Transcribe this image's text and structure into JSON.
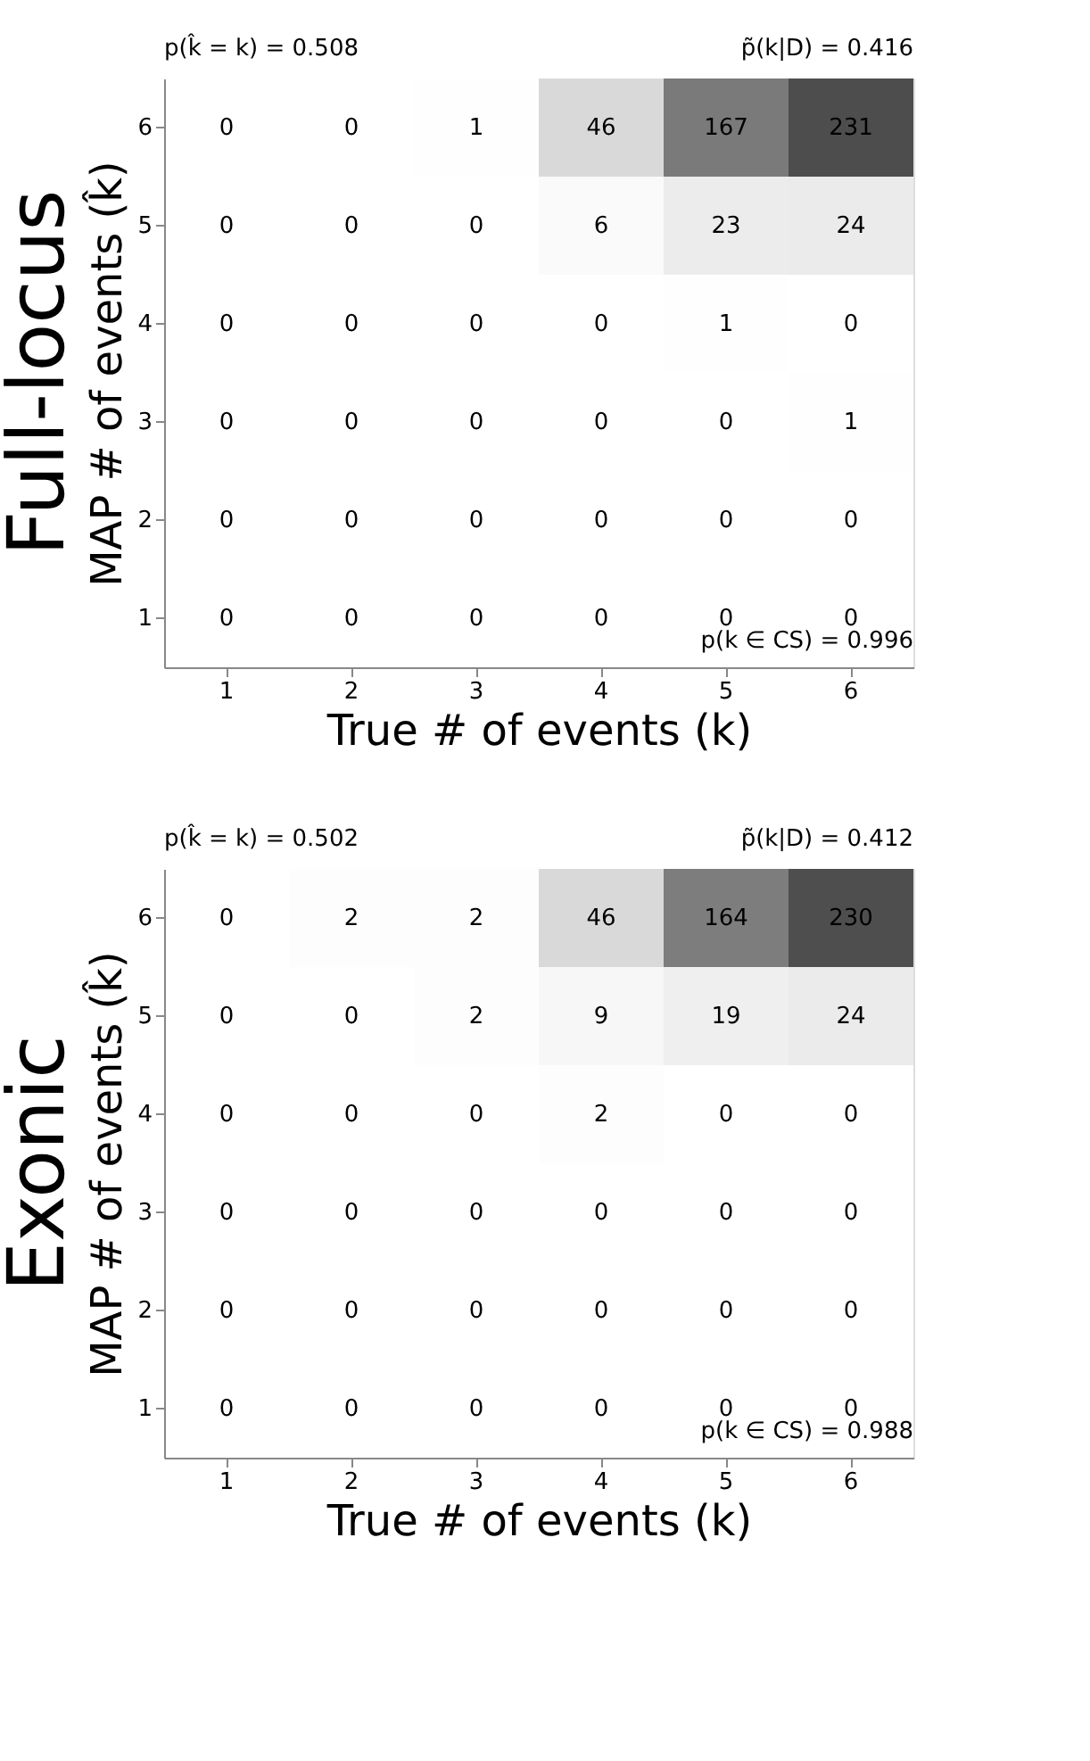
{
  "chart_data": [
    {
      "type": "heatmap",
      "title": "Full-locus",
      "xlabel": "True # of events (k)",
      "ylabel": "MAP # of events (k̂)",
      "categories": [
        "1",
        "2",
        "3",
        "4",
        "5",
        "6"
      ],
      "y_categories": [
        "6",
        "5",
        "4",
        "3",
        "2",
        "1"
      ],
      "cells": [
        [
          0,
          0,
          1,
          46,
          167,
          231
        ],
        [
          0,
          0,
          0,
          6,
          23,
          24
        ],
        [
          0,
          0,
          0,
          0,
          1,
          0
        ],
        [
          0,
          0,
          0,
          0,
          0,
          1
        ],
        [
          0,
          0,
          0,
          0,
          0,
          0
        ],
        [
          0,
          0,
          0,
          0,
          0,
          0
        ]
      ],
      "data_labels": true,
      "grid": false,
      "legend": false,
      "annotations": [
        "p(k̂ = k) = 0.508",
        "p̃(k|D) = 0.416",
        "p(k ∈ CS) = 0.996"
      ]
    },
    {
      "type": "heatmap",
      "title": "Exonic",
      "xlabel": "True # of events (k)",
      "ylabel": "MAP # of events (k̂)",
      "categories": [
        "1",
        "2",
        "3",
        "4",
        "5",
        "6"
      ],
      "y_categories": [
        "6",
        "5",
        "4",
        "3",
        "2",
        "1"
      ],
      "cells": [
        [
          0,
          2,
          2,
          46,
          164,
          230
        ],
        [
          0,
          0,
          2,
          9,
          19,
          24
        ],
        [
          0,
          0,
          0,
          2,
          0,
          0
        ],
        [
          0,
          0,
          0,
          0,
          0,
          0
        ],
        [
          0,
          0,
          0,
          0,
          0,
          0
        ],
        [
          0,
          0,
          0,
          0,
          0,
          0
        ]
      ],
      "data_labels": true,
      "grid": false,
      "legend": false,
      "annotations": [
        "p(k̂ = k) = 0.502",
        "p̃(k|D) = 0.412",
        "p(k ∈ CS) = 0.988"
      ]
    }
  ]
}
